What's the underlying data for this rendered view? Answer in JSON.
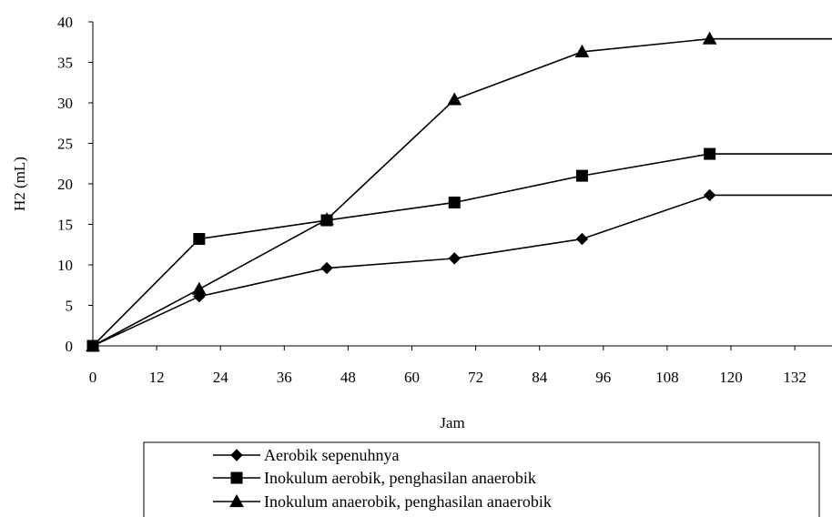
{
  "chart_data": {
    "type": "line",
    "title": "",
    "xlabel": "Jam",
    "ylabel": "H2 (mL)",
    "xlim": [
      0,
      139
    ],
    "ylim": [
      0,
      40
    ],
    "xticks": [
      0,
      12,
      24,
      36,
      48,
      60,
      72,
      84,
      96,
      108,
      120,
      132
    ],
    "yticks": [
      0,
      5,
      10,
      15,
      20,
      25,
      30,
      35,
      40
    ],
    "grid": false,
    "legend_position": "bottom",
    "series": [
      {
        "name": "Aerobik sepenuhnya",
        "marker": "diamond",
        "x": [
          0,
          20,
          44,
          68,
          92,
          116
        ],
        "y": [
          0,
          6.1,
          9.6,
          10.8,
          13.2,
          18.6
        ],
        "extend_to": 139
      },
      {
        "name": "Inokulum aerobik, penghasilan anaerobik",
        "marker": "square",
        "x": [
          0,
          20,
          44,
          68,
          92,
          116
        ],
        "y": [
          0,
          13.2,
          15.5,
          17.7,
          21.0,
          23.7
        ],
        "extend_to": 139
      },
      {
        "name": "Inokulum anaerobik, penghasilan anaerobik",
        "marker": "triangle",
        "x": [
          0,
          20,
          44,
          68,
          92,
          116
        ],
        "y": [
          0,
          7.0,
          15.6,
          30.4,
          36.3,
          37.9
        ],
        "extend_to": 139
      }
    ]
  }
}
